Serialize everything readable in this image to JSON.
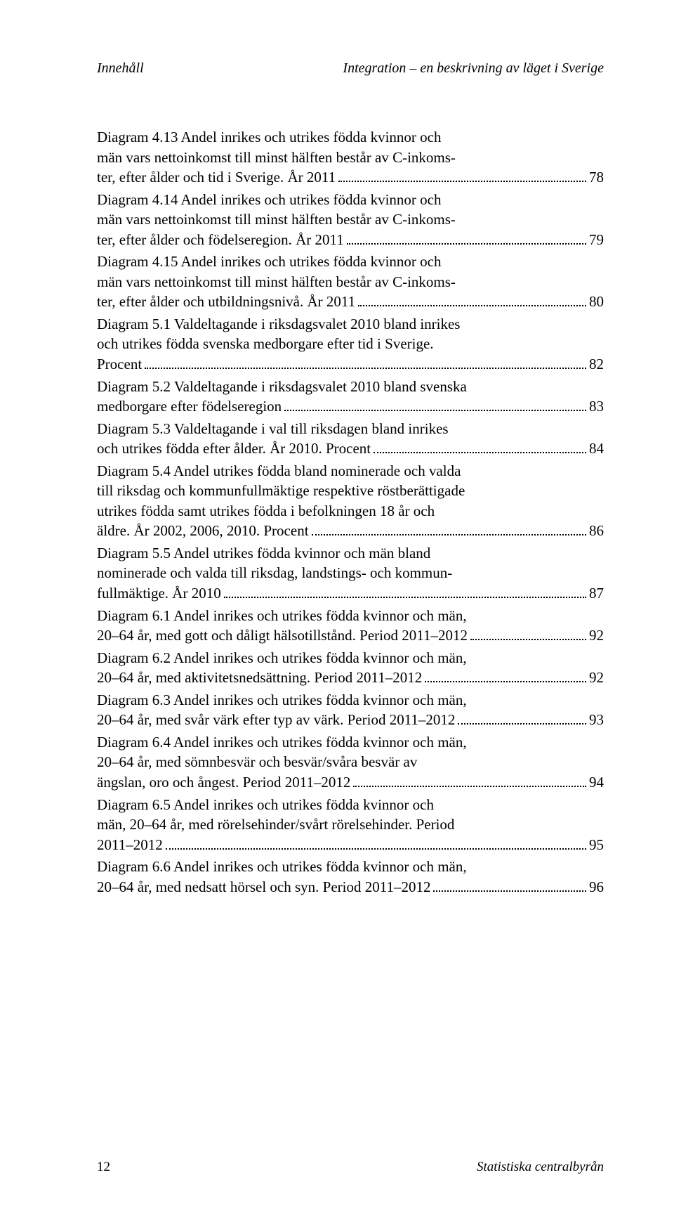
{
  "header": {
    "left": "Innehåll",
    "right": "Integration – en beskrivning av läget i Sverige"
  },
  "entries": [
    {
      "lines": [
        "Diagram 4.13 Andel inrikes och utrikes födda kvinnor och",
        "män vars nettoinkomst till minst hälften består av C-inkoms-"
      ],
      "last": "ter, efter ålder och tid i Sverige. År 2011",
      "page": "78"
    },
    {
      "lines": [
        "Diagram 4.14 Andel inrikes och utrikes födda kvinnor och",
        "män vars nettoinkomst till minst hälften består av C-inkoms-"
      ],
      "last": "ter, efter ålder och födelseregion. År 2011",
      "page": "79"
    },
    {
      "lines": [
        "Diagram 4.15 Andel inrikes och utrikes födda kvinnor och",
        "män vars nettoinkomst till minst hälften består av C-inkoms-"
      ],
      "last": "ter, efter ålder och utbildningsnivå. År 2011",
      "page": "80"
    },
    {
      "lines": [
        "Diagram 5.1 Valdeltagande i riksdagsvalet 2010 bland inrikes",
        "och utrikes födda svenska medborgare efter tid i Sverige."
      ],
      "last": "Procent",
      "page": "82"
    },
    {
      "lines": [
        "Diagram 5.2 Valdeltagande i riksdagsvalet 2010 bland svenska"
      ],
      "last": "medborgare efter födelseregion",
      "page": "83"
    },
    {
      "lines": [
        "Diagram 5.3 Valdeltagande i val till riksdagen bland inrikes"
      ],
      "last": "och utrikes födda efter ålder. År 2010. Procent",
      "page": "84"
    },
    {
      "lines": [
        "Diagram 5.4 Andel utrikes födda bland nominerade och valda",
        "till riksdag och kommunfullmäktige respektive röstberättigade",
        "utrikes födda samt utrikes födda i befolkningen 18 år och"
      ],
      "last": "äldre. År 2002, 2006, 2010. Procent",
      "page": "86"
    },
    {
      "lines": [
        "Diagram 5.5 Andel utrikes födda kvinnor och män bland",
        "nominerade och valda till riksdag, landstings- och kommun-"
      ],
      "last": "fullmäktige. År 2010",
      "page": "87"
    },
    {
      "lines": [
        "Diagram 6.1 Andel inrikes och utrikes födda kvinnor och män,"
      ],
      "last": "20–64 år, med gott och dåligt hälsotillstånd. Period 2011–2012",
      "page": "92"
    },
    {
      "lines": [
        "Diagram 6.2 Andel inrikes och utrikes födda kvinnor och män,"
      ],
      "last": "20–64 år, med aktivitetsnedsättning. Period 2011–2012",
      "page": "92"
    },
    {
      "lines": [
        "Diagram 6.3 Andel inrikes och utrikes födda kvinnor och män,"
      ],
      "last": "20–64 år, med svår värk efter typ av värk. Period 2011–2012",
      "page": "93"
    },
    {
      "lines": [
        "Diagram 6.4 Andel inrikes och utrikes födda kvinnor och män,",
        "20–64 år, med sömnbesvär och besvär/svåra besvär av"
      ],
      "last": "ängslan, oro och ångest. Period 2011–2012",
      "page": "94"
    },
    {
      "lines": [
        "Diagram 6.5 Andel inrikes och utrikes födda kvinnor och",
        "män, 20–64 år, med rörelsehinder/svårt rörelsehinder. Period"
      ],
      "last": "2011–2012",
      "page": "95"
    },
    {
      "lines": [
        "Diagram 6.6 Andel inrikes och utrikes födda kvinnor och män,"
      ],
      "last": "20–64 år, med nedsatt hörsel och syn. Period 2011–2012",
      "page": "96"
    }
  ],
  "footer": {
    "page_number": "12",
    "publisher": "Statistiska centralbyrån"
  }
}
